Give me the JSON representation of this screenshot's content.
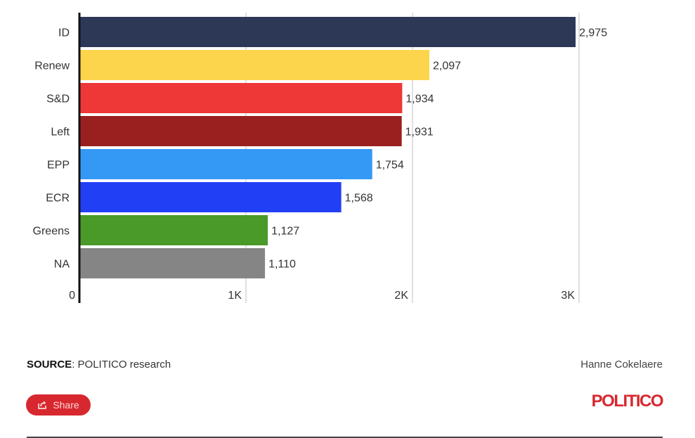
{
  "chart_data": {
    "type": "bar",
    "orientation": "horizontal",
    "title": "",
    "xlabel": "",
    "ylabel": "",
    "categories": [
      "ID",
      "Renew",
      "S&D",
      "Left",
      "EPP",
      "ECR",
      "Greens",
      "NA"
    ],
    "values": [
      2975,
      2097,
      1934,
      1931,
      1754,
      1568,
      1127,
      1110
    ],
    "value_labels": [
      "2,975",
      "2,097",
      "1,934",
      "1,931",
      "1,754",
      "1,568",
      "1,127",
      "1,110"
    ],
    "colors": [
      "#2c3856",
      "#fcd54c",
      "#ee3737",
      "#9a1f1f",
      "#3499f5",
      "#2140f5",
      "#4a9a2a",
      "#858585"
    ],
    "xlim": [
      0,
      3000
    ],
    "x_ticks": [
      0,
      1000,
      2000,
      3000
    ],
    "x_tick_labels": [
      "0",
      "1K",
      "2K",
      "3K"
    ],
    "grid": true,
    "legend": "none"
  },
  "footer": {
    "source_label": "SOURCE",
    "source_text": ": POLITICO research",
    "author": "Hanne Cokelaere",
    "share_label": "Share",
    "brand": "POLITICO"
  },
  "colors": {
    "brand": "#d7282f"
  }
}
